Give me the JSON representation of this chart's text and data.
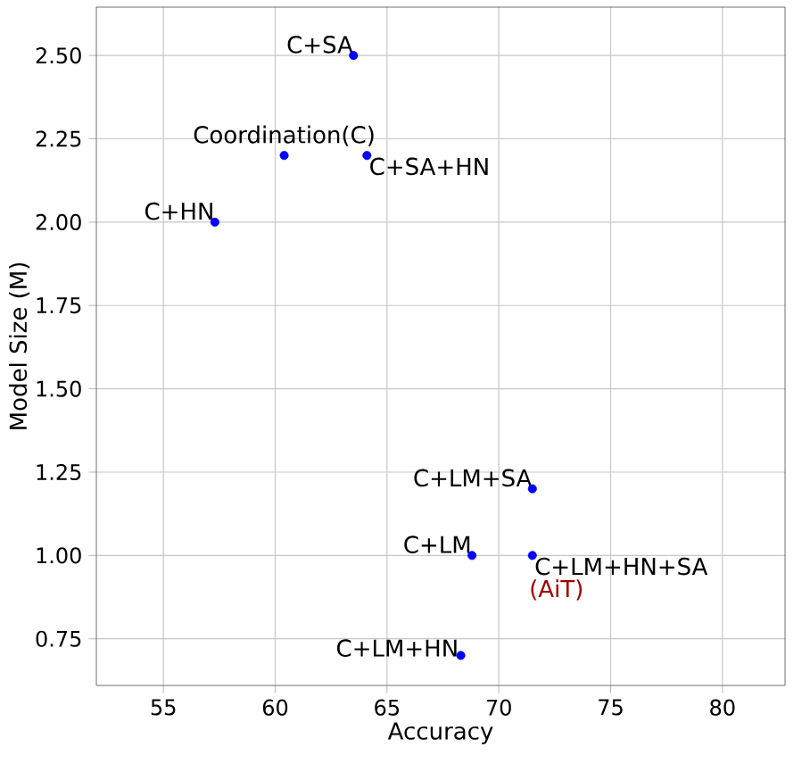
{
  "chart_data": {
    "type": "scatter",
    "xlabel": "Accuracy",
    "ylabel": "Model Size (M)",
    "x": [
      63.5,
      60.4,
      64.1,
      57.3,
      71.5,
      68.8,
      71.5,
      68.3
    ],
    "series": [
      {
        "color": "#0000ff",
        "values": [
          2.5,
          2.2,
          2.2,
          2.0,
          1.2,
          1.0,
          1.0,
          0.7
        ]
      }
    ],
    "xlim": [
      52.0,
      82.8
    ],
    "ylim": [
      0.61,
      2.645
    ],
    "xticks": [
      55,
      60,
      65,
      70,
      75,
      80
    ],
    "yticks": [
      {
        "value": 0.75,
        "label": "0.75"
      },
      {
        "value": 1.0,
        "label": "1.00"
      },
      {
        "value": 1.25,
        "label": "1.25"
      },
      {
        "value": 1.5,
        "label": "1.50"
      },
      {
        "value": 1.75,
        "label": "1.75"
      },
      {
        "value": 2.0,
        "label": "2.00"
      },
      {
        "value": 2.25,
        "label": "2.25"
      },
      {
        "value": 2.5,
        "label": "2.50"
      }
    ],
    "grid": true,
    "annotations": [
      {
        "text": "C+SA",
        "x": 63.5,
        "y": 2.5
      },
      {
        "text": "Coordination(C)",
        "x": 60.4,
        "y": 2.2
      },
      {
        "text": "C+SA+HN",
        "x": 64.1,
        "y": 2.2
      },
      {
        "text": "C+HN",
        "x": 57.3,
        "y": 2.0
      },
      {
        "text": "C+LM+SA",
        "x": 71.5,
        "y": 1.2
      },
      {
        "text": "C+LM",
        "x": 68.8,
        "y": 1.0
      },
      {
        "text": "C+LM+HN+SA",
        "x": 71.5,
        "y": 1.0
      },
      "(AiT)",
      {
        "text": "C+LM+HN",
        "x": 68.3,
        "y": 0.7
      }
    ]
  }
}
